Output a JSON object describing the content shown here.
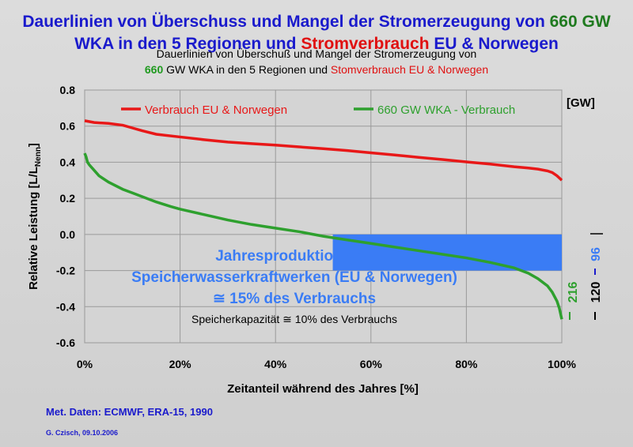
{
  "page": {
    "title_line1_a": "Dauerlinien von Überschuss und Mangel der Stromerzeugung von ",
    "title_line1_b": "660 GW",
    "title_line2_a": "WKA in den 5 Regionen und ",
    "title_line2_b": "Stromverbrauch",
    "title_line2_c": " EU & Norwegen",
    "subtitle_line1": "Dauerlinien von Überschuß und Mangel der Stromerzeugung von",
    "subtitle_line2_a": "660",
    "subtitle_line2_b": " GW WKA in den 5 Regionen und ",
    "subtitle_line2_c": "Stomverbrauch EU & Norwegen",
    "met_data": "Met. Daten: ECMWF, ERA-15, 1990",
    "author": "G. Czisch, 09.10.2006"
  },
  "chart_data": {
    "type": "line",
    "xlabel": "Zeitanteil während des Jahres [%]",
    "ylabel": "Relative Leistung [L/L",
    "ylabel_sub": "Nenn",
    "ylabel_end": "]",
    "xlim": [
      0,
      100
    ],
    "ylim": [
      -0.6,
      0.8
    ],
    "x_ticks": [
      0,
      20,
      40,
      60,
      80,
      100
    ],
    "x_tick_labels": [
      "0%",
      "20%",
      "40%",
      "60%",
      "80%",
      "100%"
    ],
    "y_ticks": [
      0.8,
      0.6,
      0.4,
      0.2,
      0.0,
      -0.2,
      -0.4,
      -0.6
    ],
    "y_tick_labels": [
      "0.8",
      "0.6",
      "0.4",
      "0.2",
      "0.0",
      "-0.2",
      "-0.4",
      "-0.6"
    ],
    "grid": true,
    "unit_label": "[GW]",
    "series": [
      {
        "name": "Verbrauch EU & Norwegen",
        "color": "#e81818",
        "x": [
          0,
          2,
          5,
          8,
          10,
          12,
          15,
          20,
          25,
          30,
          35,
          40,
          45,
          50,
          55,
          60,
          65,
          70,
          75,
          80,
          85,
          90,
          93,
          95,
          97,
          98,
          99,
          100
        ],
        "y": [
          0.63,
          0.62,
          0.615,
          0.605,
          0.59,
          0.575,
          0.555,
          0.54,
          0.525,
          0.512,
          0.503,
          0.495,
          0.485,
          0.475,
          0.465,
          0.452,
          0.44,
          0.427,
          0.415,
          0.402,
          0.39,
          0.375,
          0.368,
          0.362,
          0.352,
          0.343,
          0.325,
          0.3
        ]
      },
      {
        "name": "660 GW WKA - Verbrauch",
        "color": "#2ea02e",
        "x": [
          0,
          0.3,
          0.6,
          1,
          2,
          3,
          5,
          8,
          10,
          12,
          15,
          18,
          20,
          25,
          30,
          35,
          40,
          45,
          50,
          55,
          60,
          65,
          70,
          75,
          80,
          85,
          90,
          93,
          95,
          97,
          98,
          99,
          99.5,
          100
        ],
        "y": [
          0.45,
          0.43,
          0.4,
          0.385,
          0.355,
          0.325,
          0.29,
          0.25,
          0.23,
          0.21,
          0.18,
          0.155,
          0.14,
          0.11,
          0.08,
          0.055,
          0.035,
          0.015,
          -0.01,
          -0.03,
          -0.05,
          -0.07,
          -0.09,
          -0.11,
          -0.13,
          -0.155,
          -0.185,
          -0.215,
          -0.245,
          -0.285,
          -0.32,
          -0.37,
          -0.41,
          -0.47
        ]
      }
    ],
    "shaded_region": {
      "x_start": 52,
      "x_end": 100,
      "y_top": 0.0,
      "y_bottom": -0.2,
      "color": "#3a7cf5"
    },
    "annotations": {
      "storage_line1": "Jahresproduktion von",
      "storage_line2": "Speicherwasserkraftwerken (EU & Norwegen)",
      "storage_line3": "≅ 15% des Verbrauchs",
      "capacity": "Speicherkapazität  ≅  10% des Verbrauchs",
      "gw_216": "216",
      "gw_120": "120",
      "gw_96": "96"
    }
  }
}
